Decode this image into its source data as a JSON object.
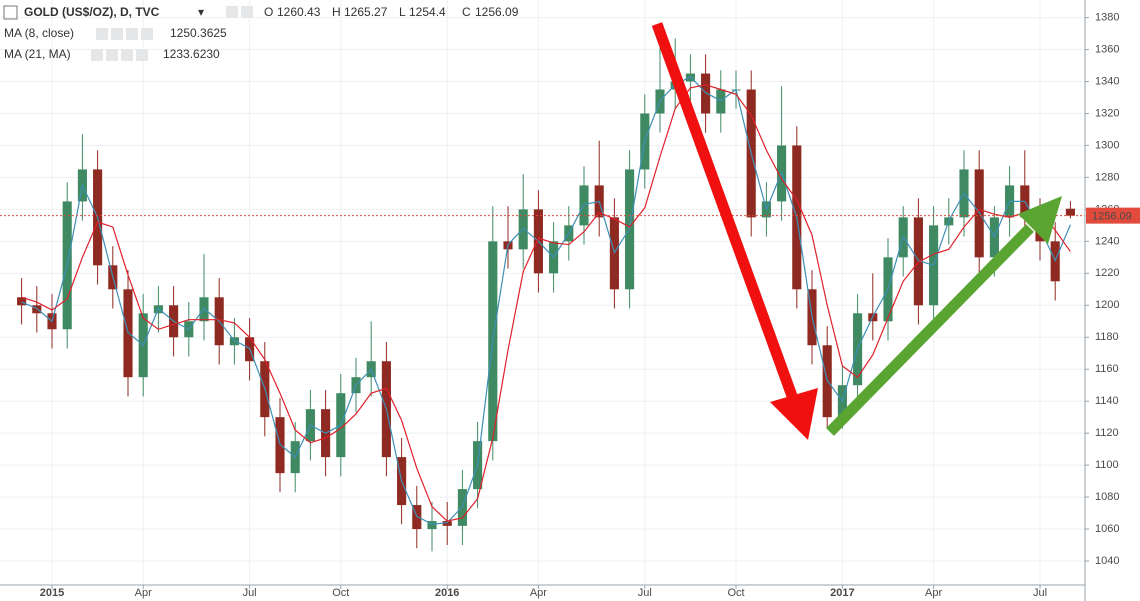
{
  "chart_data": {
    "type": "candlestick",
    "title": "GOLD (US$/OZ), D, TVC",
    "ohlc_labels": [
      "O",
      "H",
      "L",
      "C"
    ],
    "categories": [
      null,
      null,
      "2015",
      null,
      null,
      null,
      null,
      null,
      "Apr",
      null,
      null,
      null,
      null,
      null,
      null,
      "Jul",
      null,
      null,
      null,
      null,
      null,
      "Oct",
      null,
      null,
      null,
      null,
      null,
      null,
      "2016",
      null,
      null,
      null,
      null,
      null,
      "Apr",
      null,
      null,
      null,
      null,
      null,
      null,
      "Jul",
      null,
      null,
      null,
      null,
      null,
      "Oct",
      null,
      null,
      null,
      null,
      null,
      null,
      "2017",
      null,
      null,
      null,
      null,
      null,
      "Apr",
      null,
      null,
      null,
      null,
      null,
      null,
      "Jul",
      null,
      null
    ],
    "open": [
      1205,
      1200,
      1195,
      1185,
      1265,
      1285,
      1225,
      1210,
      1155,
      1195,
      1200,
      1180,
      1190,
      1205,
      1175,
      1180,
      1165,
      1130,
      1095,
      1115,
      1135,
      1105,
      1145,
      1155,
      1165,
      1105,
      1075,
      1060,
      1065,
      1062,
      1085,
      1115,
      1240,
      1235,
      1260,
      1220,
      1240,
      1250,
      1275,
      1255,
      1210,
      1285,
      1320,
      1335,
      1340,
      1345,
      1320,
      1335,
      1335,
      1255,
      1265,
      1300,
      1210,
      1175,
      1130,
      1150,
      1195,
      1190,
      1230,
      1255,
      1200,
      1250,
      1255,
      1285,
      1230,
      1255,
      1275,
      1255,
      1240,
      1260.43
    ],
    "high": [
      1217,
      1212,
      1207,
      1277,
      1307,
      1297,
      1237,
      1222,
      1207,
      1212,
      1212,
      1202,
      1232,
      1217,
      1192,
      1192,
      1177,
      1142,
      1127,
      1147,
      1147,
      1157,
      1167,
      1190,
      1177,
      1117,
      1087,
      1077,
      1077,
      1097,
      1127,
      1262,
      1262,
      1282,
      1272,
      1252,
      1262,
      1287,
      1303,
      1267,
      1297,
      1332,
      1375,
      1367,
      1357,
      1357,
      1347,
      1347,
      1347,
      1277,
      1337,
      1312,
      1222,
      1187,
      1162,
      1207,
      1220,
      1242,
      1262,
      1267,
      1262,
      1267,
      1297,
      1297,
      1262,
      1287,
      1297,
      1267,
      1252,
      1265.27
    ],
    "low": [
      1188,
      1183,
      1173,
      1173,
      1253,
      1213,
      1198,
      1143,
      1143,
      1183,
      1168,
      1168,
      1178,
      1163,
      1163,
      1153,
      1118,
      1083,
      1083,
      1103,
      1093,
      1093,
      1133,
      1143,
      1093,
      1063,
      1048,
      1046,
      1050,
      1050,
      1073,
      1103,
      1223,
      1223,
      1208,
      1208,
      1228,
      1238,
      1243,
      1198,
      1198,
      1273,
      1308,
      1323,
      1328,
      1308,
      1308,
      1323,
      1243,
      1243,
      1253,
      1198,
      1163,
      1123,
      1123,
      1138,
      1178,
      1178,
      1218,
      1188,
      1188,
      1238,
      1243,
      1218,
      1218,
      1243,
      1243,
      1228,
      1203,
      1254.4
    ],
    "close": [
      1200,
      1195,
      1185,
      1265,
      1285,
      1225,
      1210,
      1155,
      1195,
      1200,
      1180,
      1190,
      1205,
      1175,
      1180,
      1165,
      1130,
      1095,
      1115,
      1135,
      1105,
      1145,
      1155,
      1165,
      1105,
      1075,
      1060,
      1065,
      1062,
      1085,
      1115,
      1240,
      1235,
      1260,
      1220,
      1240,
      1250,
      1275,
      1255,
      1210,
      1285,
      1320,
      1335,
      1340,
      1345,
      1320,
      1335,
      1335,
      1255,
      1265,
      1300,
      1210,
      1175,
      1130,
      1150,
      1195,
      1190,
      1230,
      1255,
      1200,
      1250,
      1255,
      1285,
      1230,
      1255,
      1275,
      1255,
      1240,
      1215,
      1256.09
    ],
    "up_color": "#3f8a63",
    "down_color": "#8e2a22",
    "series": [
      {
        "name": "MA (8, close)",
        "color": "#3d8fb5",
        "value_label": "1250.3625",
        "values": [
          1202,
          1198,
          1190,
          1225,
          1275,
          1255,
          1218,
          1183,
          1175,
          1198,
          1190,
          1185,
          1198,
          1190,
          1178,
          1173,
          1148,
          1113,
          1105,
          1125,
          1120,
          1125,
          1150,
          1160,
          1135,
          1090,
          1068,
          1063,
          1064,
          1074,
          1100,
          1178,
          1238,
          1248,
          1240,
          1230,
          1245,
          1263,
          1265,
          1233,
          1248,
          1303,
          1328,
          1338,
          1343,
          1333,
          1328,
          1335,
          1295,
          1260,
          1283,
          1255,
          1193,
          1153,
          1140,
          1173,
          1193,
          1210,
          1243,
          1228,
          1225,
          1253,
          1270,
          1258,
          1243,
          1265,
          1265,
          1248,
          1228,
          1250.3625
        ]
      },
      {
        "name": "MA (21, MA)",
        "color": "#e0202a",
        "value_label": "1233.6230",
        "values": [
          1205,
          1202,
          1197,
          1204,
          1230,
          1252,
          1249,
          1219,
          1192,
          1185,
          1188,
          1191,
          1191,
          1191,
          1189,
          1180,
          1166,
          1145,
          1122,
          1114,
          1117,
          1123,
          1132,
          1145,
          1148,
          1128,
          1098,
          1074,
          1065,
          1067,
          1079,
          1117,
          1172,
          1221,
          1242,
          1239,
          1238,
          1246,
          1258,
          1254,
          1249,
          1261,
          1293,
          1323,
          1336,
          1338,
          1335,
          1332,
          1319,
          1297,
          1279,
          1266,
          1244,
          1200,
          1162,
          1155,
          1169,
          1192,
          1215,
          1227,
          1232,
          1235,
          1249,
          1260,
          1257,
          1255,
          1258,
          1259,
          1247,
          1233.623
        ]
      }
    ],
    "last_price_color": "#e24a3b",
    "ylim": [
      1025,
      1391
    ],
    "yticks": [
      1040,
      1060,
      1080,
      1100,
      1120,
      1140,
      1160,
      1180,
      1200,
      1220,
      1240,
      1260,
      1280,
      1300,
      1320,
      1340,
      1360,
      1380
    ],
    "grid": true
  }
}
